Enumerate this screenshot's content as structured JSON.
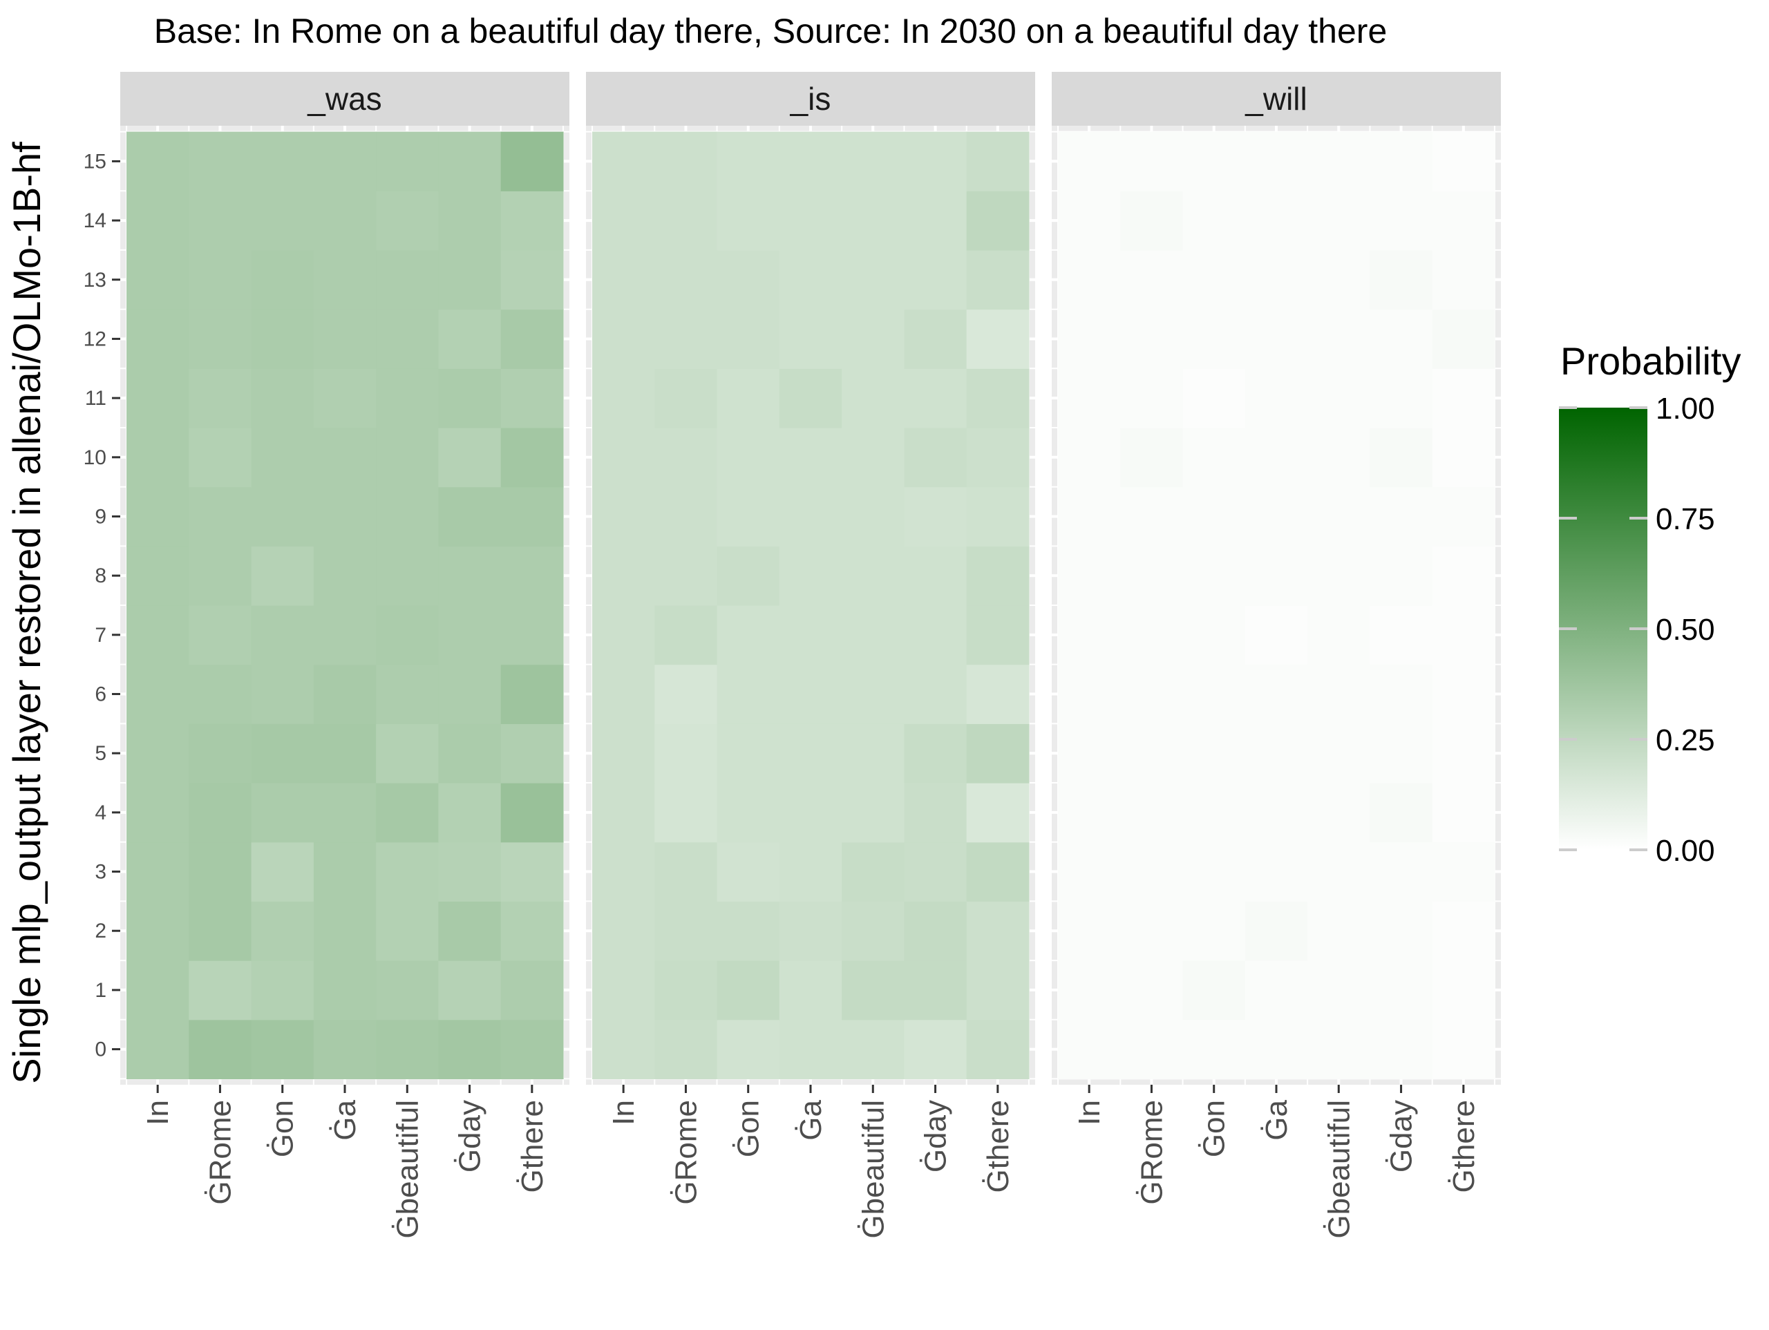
{
  "chart_data": {
    "type": "heatmap",
    "title": "Base: In Rome on a beautiful day there, Source: In 2030 on a beautiful day there",
    "ylabel": "Single mlp_output layer restored in allenai/OLMo-1B-hf",
    "xlabel": "",
    "x_categories": [
      "In",
      "ĠRome",
      "Ġon",
      "Ġa",
      "Ġbeautiful",
      "Ġday",
      "Ġthere"
    ],
    "y_categories": [
      "0",
      "1",
      "2",
      "3",
      "4",
      "5",
      "6",
      "7",
      "8",
      "9",
      "10",
      "11",
      "12",
      "13",
      "14",
      "15"
    ],
    "legend": {
      "title": "Probability",
      "position": "right",
      "ticks": [
        "0.00",
        "0.25",
        "0.50",
        "0.75",
        "1.00"
      ],
      "tick_values": [
        0,
        0.25,
        0.5,
        0.75,
        1
      ],
      "range": [
        0,
        1
      ],
      "low_color": "#ffffff",
      "high_color": "#006400"
    },
    "grid": true,
    "facets": [
      {
        "label": "_was",
        "values": [
          [
            0.33,
            0.38,
            0.37,
            0.34,
            0.35,
            0.36,
            0.35
          ],
          [
            0.33,
            0.28,
            0.3,
            0.33,
            0.32,
            0.29,
            0.32
          ],
          [
            0.33,
            0.35,
            0.31,
            0.33,
            0.3,
            0.34,
            0.3
          ],
          [
            0.33,
            0.35,
            0.27,
            0.33,
            0.3,
            0.29,
            0.27
          ],
          [
            0.33,
            0.35,
            0.33,
            0.33,
            0.35,
            0.3,
            0.4
          ],
          [
            0.33,
            0.34,
            0.35,
            0.35,
            0.3,
            0.33,
            0.31
          ],
          [
            0.33,
            0.33,
            0.32,
            0.34,
            0.32,
            0.32,
            0.38
          ],
          [
            0.33,
            0.31,
            0.32,
            0.32,
            0.33,
            0.32,
            0.32
          ],
          [
            0.33,
            0.32,
            0.29,
            0.32,
            0.32,
            0.32,
            0.32
          ],
          [
            0.33,
            0.32,
            0.32,
            0.32,
            0.32,
            0.34,
            0.34
          ],
          [
            0.33,
            0.3,
            0.32,
            0.32,
            0.32,
            0.29,
            0.36
          ],
          [
            0.33,
            0.31,
            0.32,
            0.31,
            0.32,
            0.33,
            0.31
          ],
          [
            0.33,
            0.32,
            0.33,
            0.32,
            0.32,
            0.3,
            0.34
          ],
          [
            0.33,
            0.32,
            0.33,
            0.32,
            0.32,
            0.32,
            0.29
          ],
          [
            0.33,
            0.32,
            0.32,
            0.32,
            0.31,
            0.32,
            0.3
          ],
          [
            0.33,
            0.32,
            0.32,
            0.32,
            0.32,
            0.32,
            0.42
          ]
        ]
      },
      {
        "label": "_is",
        "values": [
          [
            0.2,
            0.21,
            0.18,
            0.19,
            0.19,
            0.17,
            0.21
          ],
          [
            0.2,
            0.22,
            0.24,
            0.19,
            0.23,
            0.23,
            0.2
          ],
          [
            0.2,
            0.21,
            0.21,
            0.2,
            0.21,
            0.23,
            0.2
          ],
          [
            0.2,
            0.21,
            0.18,
            0.19,
            0.22,
            0.21,
            0.24
          ],
          [
            0.2,
            0.17,
            0.19,
            0.19,
            0.19,
            0.21,
            0.15
          ],
          [
            0.2,
            0.17,
            0.19,
            0.19,
            0.19,
            0.22,
            0.25
          ],
          [
            0.2,
            0.16,
            0.19,
            0.19,
            0.19,
            0.19,
            0.16
          ],
          [
            0.2,
            0.22,
            0.19,
            0.19,
            0.19,
            0.19,
            0.22
          ],
          [
            0.2,
            0.2,
            0.21,
            0.19,
            0.19,
            0.19,
            0.22
          ],
          [
            0.2,
            0.2,
            0.19,
            0.19,
            0.19,
            0.18,
            0.19
          ],
          [
            0.2,
            0.2,
            0.19,
            0.19,
            0.19,
            0.21,
            0.2
          ],
          [
            0.2,
            0.21,
            0.19,
            0.22,
            0.19,
            0.19,
            0.21
          ],
          [
            0.2,
            0.2,
            0.2,
            0.19,
            0.19,
            0.21,
            0.15
          ],
          [
            0.2,
            0.2,
            0.2,
            0.19,
            0.19,
            0.19,
            0.21
          ],
          [
            0.2,
            0.2,
            0.19,
            0.19,
            0.19,
            0.19,
            0.25
          ],
          [
            0.2,
            0.2,
            0.19,
            0.19,
            0.19,
            0.19,
            0.21
          ]
        ]
      },
      {
        "label": "_will",
        "values": [
          [
            0.02,
            0.02,
            0.02,
            0.02,
            0.02,
            0.02,
            0.01
          ],
          [
            0.02,
            0.02,
            0.03,
            0.02,
            0.02,
            0.02,
            0.01
          ],
          [
            0.02,
            0.02,
            0.02,
            0.03,
            0.02,
            0.02,
            0.01
          ],
          [
            0.02,
            0.02,
            0.02,
            0.02,
            0.02,
            0.02,
            0.02
          ],
          [
            0.02,
            0.02,
            0.02,
            0.02,
            0.02,
            0.03,
            0.01
          ],
          [
            0.02,
            0.02,
            0.02,
            0.02,
            0.02,
            0.02,
            0.01
          ],
          [
            0.02,
            0.02,
            0.02,
            0.02,
            0.02,
            0.02,
            0.01
          ],
          [
            0.02,
            0.02,
            0.02,
            0.01,
            0.02,
            0.01,
            0.01
          ],
          [
            0.02,
            0.02,
            0.02,
            0.02,
            0.02,
            0.02,
            0.01
          ],
          [
            0.02,
            0.02,
            0.02,
            0.02,
            0.02,
            0.02,
            0.02
          ],
          [
            0.02,
            0.03,
            0.02,
            0.02,
            0.02,
            0.03,
            0.01
          ],
          [
            0.02,
            0.02,
            0.01,
            0.02,
            0.02,
            0.02,
            0.01
          ],
          [
            0.02,
            0.02,
            0.02,
            0.02,
            0.02,
            0.02,
            0.03
          ],
          [
            0.02,
            0.02,
            0.02,
            0.02,
            0.02,
            0.03,
            0.02
          ],
          [
            0.02,
            0.03,
            0.02,
            0.02,
            0.02,
            0.02,
            0.02
          ],
          [
            0.02,
            0.02,
            0.02,
            0.02,
            0.02,
            0.02,
            0.01
          ]
        ]
      }
    ]
  },
  "colors": {
    "panel_background": "#ebebeb",
    "grid_line": "#ffffff",
    "strip_background": "#d9d9d9",
    "axis_text": "#4d4d4d",
    "tick_mark": "#333333",
    "text": "#000000"
  }
}
